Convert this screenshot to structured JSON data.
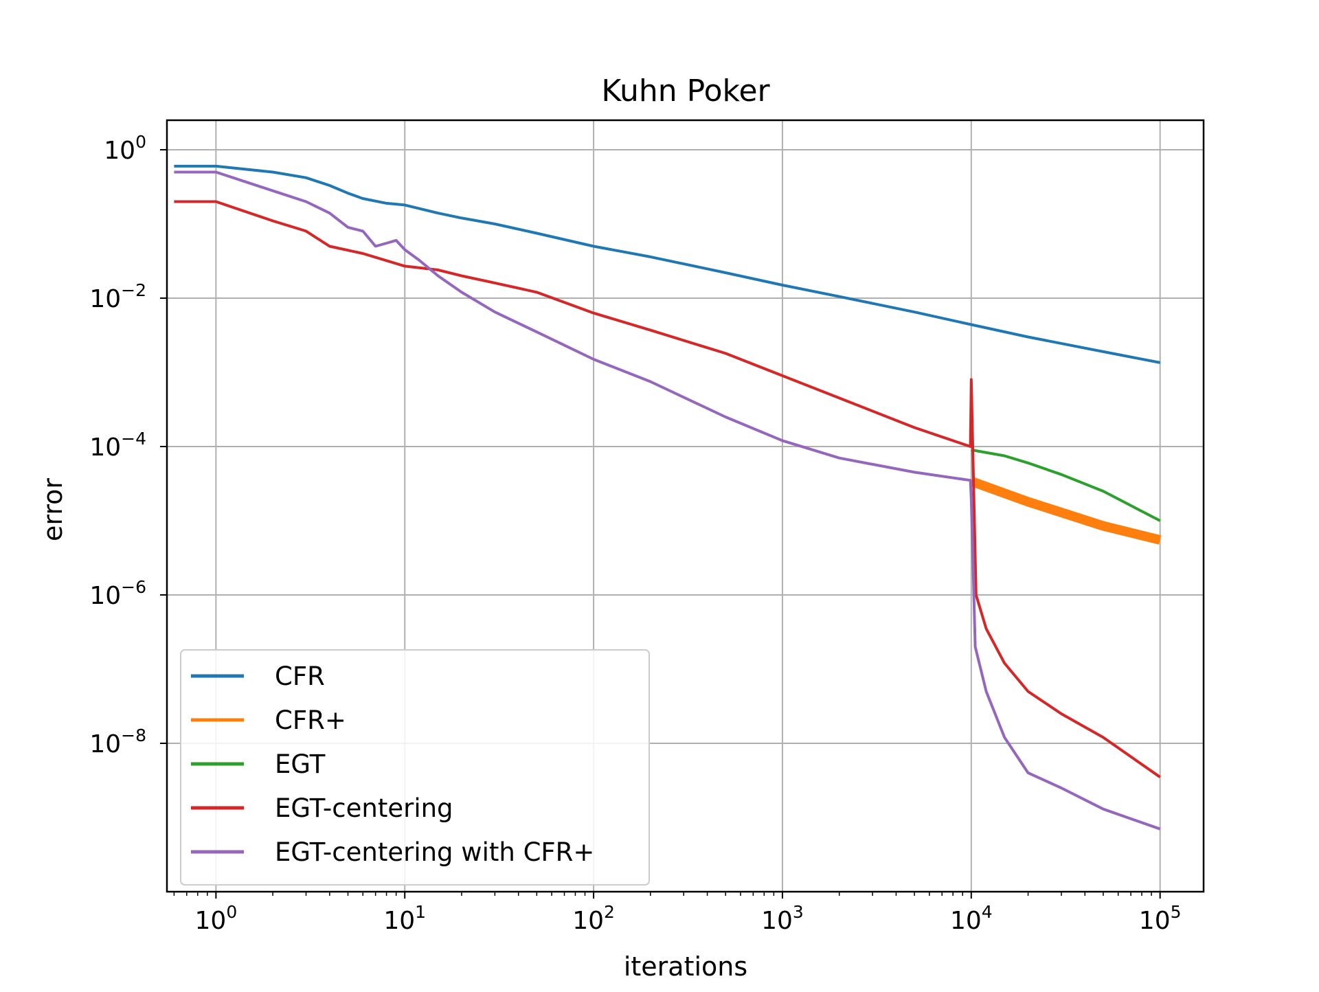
{
  "chart_data": {
    "type": "line",
    "title": "Kuhn Poker",
    "xlabel": "iterations",
    "ylabel": "error",
    "xscale": "log",
    "yscale": "log",
    "xlim": [
      0.55,
      170000
    ],
    "ylim": [
      1e-10,
      2.5
    ],
    "grid": true,
    "legend_position": "lower-left",
    "x_ticks": [
      {
        "base": "10",
        "exp": "0",
        "value": 1
      },
      {
        "base": "10",
        "exp": "1",
        "value": 10
      },
      {
        "base": "10",
        "exp": "2",
        "value": 100
      },
      {
        "base": "10",
        "exp": "3",
        "value": 1000
      },
      {
        "base": "10",
        "exp": "4",
        "value": 10000
      },
      {
        "base": "10",
        "exp": "5",
        "value": 100000
      }
    ],
    "y_ticks": [
      {
        "base": "10",
        "exp": "0",
        "value": 1
      },
      {
        "base": "10",
        "exp": "−2",
        "value": 0.01
      },
      {
        "base": "10",
        "exp": "−4",
        "value": 0.0001
      },
      {
        "base": "10",
        "exp": "−6",
        "value": 1e-06
      },
      {
        "base": "10",
        "exp": "−8",
        "value": 1e-08
      }
    ],
    "series": [
      {
        "name": "CFR",
        "color": "#1f77b4",
        "x": [
          0.6,
          1,
          2,
          3,
          4,
          5,
          6,
          8,
          10,
          15,
          20,
          30,
          50,
          100,
          200,
          500,
          1000,
          2000,
          5000,
          10000,
          20000,
          50000,
          100000
        ],
        "y": [
          0.6,
          0.6,
          0.5,
          0.42,
          0.33,
          0.26,
          0.22,
          0.19,
          0.18,
          0.14,
          0.12,
          0.1,
          0.075,
          0.05,
          0.036,
          0.022,
          0.015,
          0.0105,
          0.0065,
          0.0044,
          0.003,
          0.0019,
          0.00135
        ]
      },
      {
        "name": "CFR+",
        "color": "#ff7f0e",
        "x": [
          10000,
          20000,
          50000,
          100000
        ],
        "y": [
          3.4e-05,
          1.8e-05,
          8.5e-06,
          5.5e-06
        ]
      },
      {
        "name": "EGT",
        "color": "#2ca02c",
        "x": [
          10000,
          15000,
          20000,
          30000,
          50000,
          70000,
          100000
        ],
        "y": [
          9e-05,
          7.5e-05,
          6e-05,
          4.2e-05,
          2.5e-05,
          1.6e-05,
          1e-05
        ]
      },
      {
        "name": "EGT-centering",
        "color": "#d62728",
        "x": [
          0.6,
          1,
          2,
          3,
          4,
          6,
          10,
          15,
          20,
          30,
          50,
          100,
          200,
          500,
          1000,
          2000,
          5000,
          9900,
          10000,
          10600,
          12000,
          15000,
          20000,
          30000,
          50000,
          100000
        ],
        "y": [
          0.2,
          0.2,
          0.11,
          0.08,
          0.05,
          0.04,
          0.027,
          0.024,
          0.02,
          0.016,
          0.012,
          0.0063,
          0.0037,
          0.0018,
          0.0009,
          0.00045,
          0.00018,
          0.0001,
          0.0008,
          1e-06,
          3.5e-07,
          1.2e-07,
          5e-08,
          2.5e-08,
          1.2e-08,
          3.5e-09
        ]
      },
      {
        "name": "EGT-centering with CFR+",
        "color": "#9467bd",
        "x": [
          0.6,
          1,
          2,
          3,
          4,
          5,
          6,
          7,
          8,
          9,
          10,
          12,
          15,
          20,
          30,
          50,
          100,
          200,
          500,
          1000,
          2000,
          5000,
          9900,
          10000,
          10500,
          12000,
          15000,
          20000,
          30000,
          50000,
          100000
        ],
        "y": [
          0.5,
          0.5,
          0.28,
          0.2,
          0.14,
          0.09,
          0.08,
          0.05,
          0.055,
          0.06,
          0.045,
          0.032,
          0.02,
          0.012,
          0.0065,
          0.0035,
          0.0015,
          0.00075,
          0.00025,
          0.00012,
          7e-05,
          4.5e-05,
          3.5e-05,
          2e-05,
          2e-07,
          5e-08,
          1.2e-08,
          4e-09,
          2.5e-09,
          1.3e-09,
          7e-10
        ]
      }
    ]
  }
}
